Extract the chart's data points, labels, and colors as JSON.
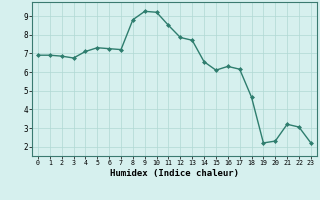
{
  "x": [
    0,
    1,
    2,
    3,
    4,
    5,
    6,
    7,
    8,
    9,
    10,
    11,
    12,
    13,
    14,
    15,
    16,
    17,
    18,
    19,
    20,
    21,
    22,
    23
  ],
  "y": [
    6.9,
    6.9,
    6.85,
    6.75,
    7.1,
    7.3,
    7.25,
    7.2,
    8.8,
    9.25,
    9.2,
    8.5,
    7.85,
    7.7,
    6.55,
    6.1,
    6.3,
    6.15,
    4.65,
    2.2,
    2.3,
    3.2,
    3.05,
    2.2
  ],
  "xlabel": "Humidex (Indice chaleur)",
  "xlim": [
    -0.5,
    23.5
  ],
  "ylim": [
    1.5,
    9.75
  ],
  "yticks": [
    2,
    3,
    4,
    5,
    6,
    7,
    8,
    9
  ],
  "xticks": [
    0,
    1,
    2,
    3,
    4,
    5,
    6,
    7,
    8,
    9,
    10,
    11,
    12,
    13,
    14,
    15,
    16,
    17,
    18,
    19,
    20,
    21,
    22,
    23
  ],
  "line_color": "#2e7d6e",
  "marker_color": "#2e7d6e",
  "bg_color": "#d6f0ee",
  "grid_color": "#b0d8d4",
  "spine_color": "#3a7a70"
}
